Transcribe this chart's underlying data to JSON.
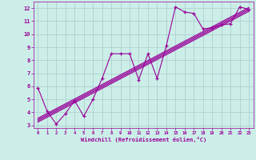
{
  "xlabel": "Windchill (Refroidissement éolien,°C)",
  "bg_color": "#cceee8",
  "line_color": "#990099",
  "grid_color": "#aacccc",
  "xlim": [
    -0.5,
    23.5
  ],
  "ylim": [
    2.8,
    12.5
  ],
  "xticks": [
    0,
    1,
    2,
    3,
    4,
    5,
    6,
    7,
    8,
    9,
    10,
    11,
    12,
    13,
    14,
    15,
    16,
    17,
    18,
    19,
    20,
    21,
    22,
    23
  ],
  "yticks": [
    3,
    4,
    5,
    6,
    7,
    8,
    9,
    10,
    11,
    12
  ],
  "series": [
    [
      0,
      5.9
    ],
    [
      1,
      4.1
    ],
    [
      2,
      3.1
    ],
    [
      3,
      3.9
    ],
    [
      4,
      4.9
    ],
    [
      5,
      3.7
    ],
    [
      6,
      5.0
    ],
    [
      7,
      6.6
    ],
    [
      8,
      8.5
    ],
    [
      9,
      8.5
    ],
    [
      10,
      8.5
    ],
    [
      11,
      6.5
    ],
    [
      12,
      8.5
    ],
    [
      13,
      6.6
    ],
    [
      14,
      9.1
    ],
    [
      15,
      12.1
    ],
    [
      16,
      11.7
    ],
    [
      17,
      11.6
    ],
    [
      18,
      10.4
    ],
    [
      19,
      10.5
    ],
    [
      20,
      10.7
    ],
    [
      21,
      10.8
    ],
    [
      22,
      12.1
    ],
    [
      23,
      11.9
    ]
  ],
  "regression_lines": [
    {
      "x0": 0,
      "y0": 3.55,
      "x1": 23,
      "y1": 12.05
    },
    {
      "x0": 0,
      "y0": 3.45,
      "x1": 23,
      "y1": 11.95
    },
    {
      "x0": 0,
      "y0": 3.35,
      "x1": 23,
      "y1": 11.85
    },
    {
      "x0": 0,
      "y0": 3.25,
      "x1": 23,
      "y1": 11.75
    }
  ]
}
